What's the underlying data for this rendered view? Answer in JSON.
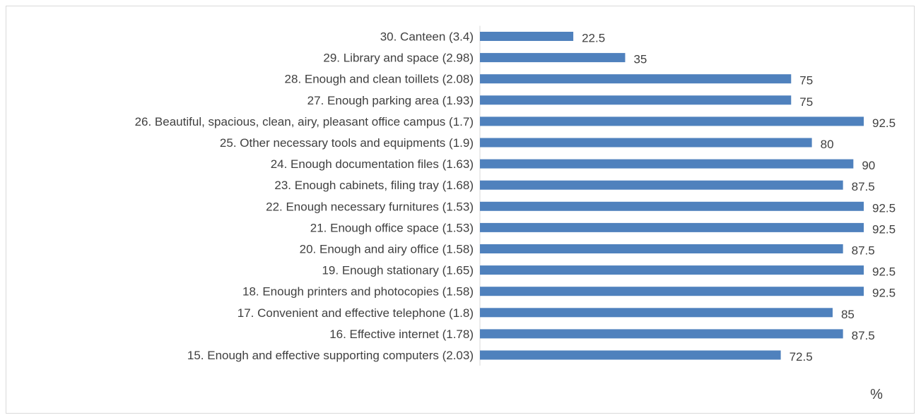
{
  "chart_data": {
    "type": "bar",
    "orientation": "horizontal",
    "categories": [
      "30. Canteen (3.4)",
      "29. Library and space  (2.98)",
      "28. Enough and clean toillets (2.08)",
      "27. Enough parking area (1.93)",
      "26. Beautiful, spacious, clean, airy, pleasant office campus (1.7)",
      "25. Other necessary tools and equipments (1.9)",
      "24. Enough documentation files (1.63)",
      "23. Enough cabinets, filing tray (1.68)",
      "22. Enough necessary furnitures (1.53)",
      "21. Enough office space (1.53)",
      "20. Enough and airy office (1.58)",
      "19. Enough stationary (1.65)",
      "18. Enough printers and photocopies (1.58)",
      "17. Convenient and effective telephone (1.8)",
      "16. Effective internet (1.78)",
      "15. Enough and effective supporting computers  (2.03)"
    ],
    "values": [
      22.5,
      35,
      75,
      75,
      92.5,
      80,
      90,
      87.5,
      92.5,
      92.5,
      87.5,
      92.5,
      92.5,
      85,
      87.5,
      72.5
    ],
    "value_labels": [
      "22.5",
      "35",
      "75",
      "75",
      "92.5",
      "80",
      "90",
      "87.5",
      "92.5",
      "92.5",
      "87.5",
      "92.5",
      "92.5",
      "85",
      "87.5",
      "72.5"
    ],
    "xlabel": "%",
    "xlim": [
      0,
      100
    ],
    "grid": false,
    "data_labels": true,
    "bar_color": "#4f81bd"
  }
}
